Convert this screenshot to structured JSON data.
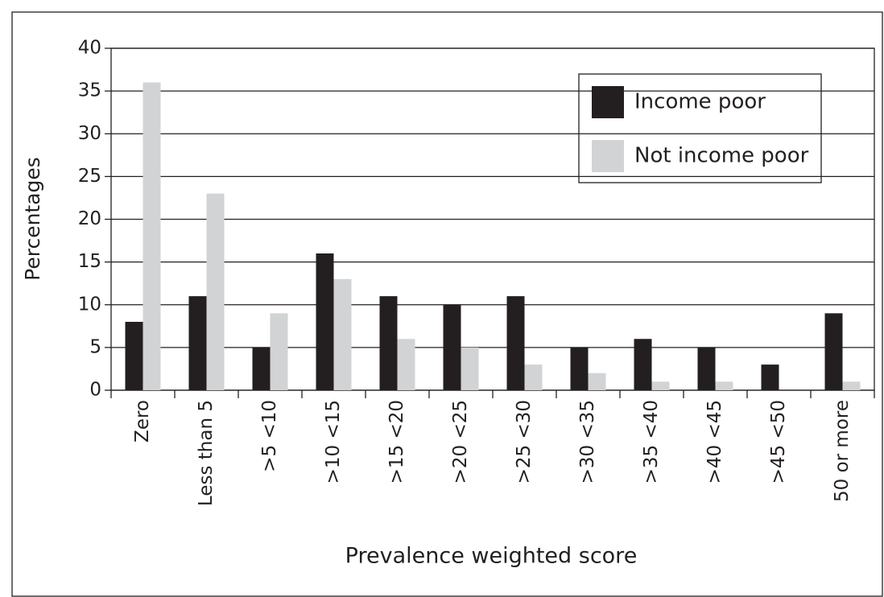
{
  "chart_data": {
    "type": "bar",
    "x_label": "Prevalence weighted score",
    "y_label": "Percentages",
    "categories": [
      "Zero",
      "Less than 5",
      ">5 <10",
      ">10 <15",
      ">15 <20",
      ">20 <25",
      ">25 <30",
      ">30 <35",
      ">35 <40",
      ">40 <45",
      ">45 <50",
      "50 or more"
    ],
    "series": [
      {
        "name": "Income poor",
        "color": "#231f20",
        "values": [
          8,
          11,
          5,
          16,
          11,
          10,
          11,
          5,
          6,
          5,
          3,
          9
        ]
      },
      {
        "name": "Not income poor",
        "color": "#d1d3d4",
        "values": [
          36,
          23,
          9,
          13,
          6,
          5,
          3,
          2,
          1,
          1,
          0,
          1
        ]
      }
    ],
    "ylim": [
      0,
      40
    ],
    "yticks": [
      0,
      5,
      10,
      15,
      20,
      25,
      30,
      35,
      40
    ],
    "grid": true,
    "legend": "upper right"
  }
}
